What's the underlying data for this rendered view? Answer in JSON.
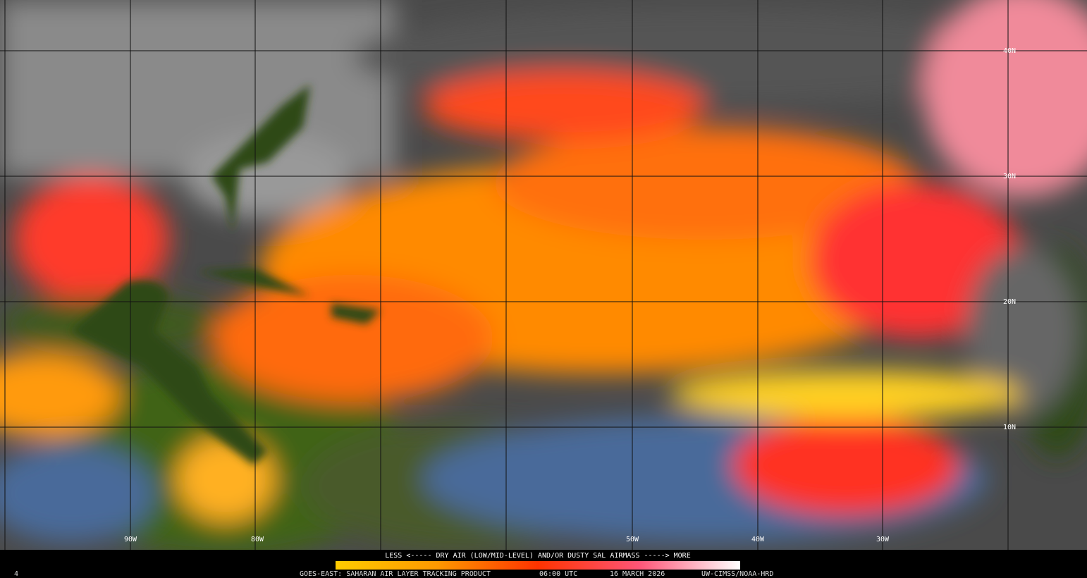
{
  "map": {
    "lon_labels": [
      "90W",
      "80W",
      "50W",
      "40W",
      "30W"
    ],
    "lat_labels": [
      "40N",
      "30N",
      "20N",
      "10N"
    ]
  },
  "legend": {
    "caption": "LESS <----- DRY AIR (LOW/MID-LEVEL) AND/OR DUSTY SAL AIRMASS -----> MORE"
  },
  "footer": {
    "frame": "4",
    "product": "GOES-EAST: SAHARAN AIR LAYER TRACKING PRODUCT",
    "time": "06:00 UTC",
    "date": "16 MARCH 2026",
    "credit": "UW-CIMSS/NOAA-HRD"
  }
}
